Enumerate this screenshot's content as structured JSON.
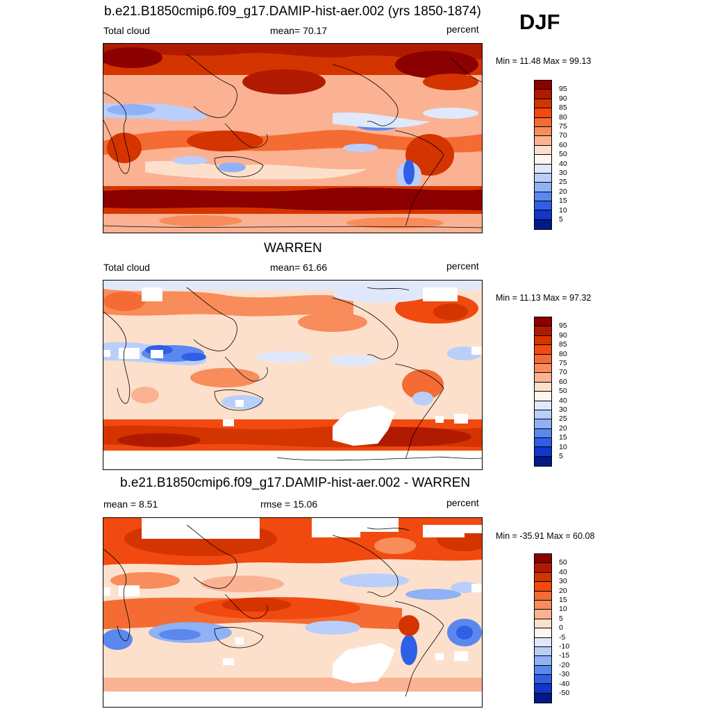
{
  "season": "DJF",
  "panels": [
    {
      "title": "b.e21.B1850cmip6.f09_g17.DAMIP-hist-aer.002 (yrs 1850-1874)",
      "left_label": "Total cloud",
      "center_label": "mean=  70.17",
      "units": "percent",
      "minmax": "Min =  11.48 Max =  99.13",
      "colorbar_ticks": [
        "95",
        "90",
        "85",
        "80",
        "75",
        "70",
        "60",
        "50",
        "40",
        "30",
        "25",
        "20",
        "15",
        "10",
        "5"
      ],
      "colors": [
        "#8b0000",
        "#b01a00",
        "#d43400",
        "#f04a10",
        "#f56b34",
        "#f88c5a",
        "#fbb293",
        "#fde0cc",
        "#fdf6ec",
        "#dfe9fb",
        "#b9cff9",
        "#8fb1f5",
        "#5b88ef",
        "#2f5fe6",
        "#1136c8",
        "#001a8c"
      ]
    },
    {
      "title": "WARREN",
      "left_label": "Total cloud",
      "center_label": "mean=  61.66",
      "units": "percent",
      "minmax": "Min =  11.13 Max =  97.32",
      "colorbar_ticks": [
        "95",
        "90",
        "85",
        "80",
        "75",
        "70",
        "60",
        "50",
        "40",
        "30",
        "25",
        "20",
        "15",
        "10",
        "5"
      ],
      "colors": [
        "#8b0000",
        "#b01a00",
        "#d43400",
        "#f04a10",
        "#f56b34",
        "#f88c5a",
        "#fbb293",
        "#fde0cc",
        "#fdf6ec",
        "#dfe9fb",
        "#b9cff9",
        "#8fb1f5",
        "#5b88ef",
        "#2f5fe6",
        "#1136c8",
        "#001a8c"
      ]
    },
    {
      "title": "b.e21.B1850cmip6.f09_g17.DAMIP-hist-aer.002 - WARREN",
      "left_label": "mean =    8.51",
      "center_label": "rmse =  15.06",
      "units": "percent",
      "minmax": "Min = -35.91 Max =  60.08",
      "colorbar_ticks": [
        "50",
        "40",
        "30",
        "20",
        "15",
        "10",
        "5",
        "0",
        "-5",
        "-10",
        "-15",
        "-20",
        "-30",
        "-40",
        "-50"
      ],
      "colors": [
        "#8b0000",
        "#b01a00",
        "#d43400",
        "#f04a10",
        "#f56b34",
        "#f88c5a",
        "#fbb293",
        "#fde0cc",
        "#fdf6ec",
        "#dfe9fb",
        "#b9cff9",
        "#8fb1f5",
        "#5b88ef",
        "#2f5fe6",
        "#1136c8",
        "#001a8c"
      ]
    }
  ]
}
